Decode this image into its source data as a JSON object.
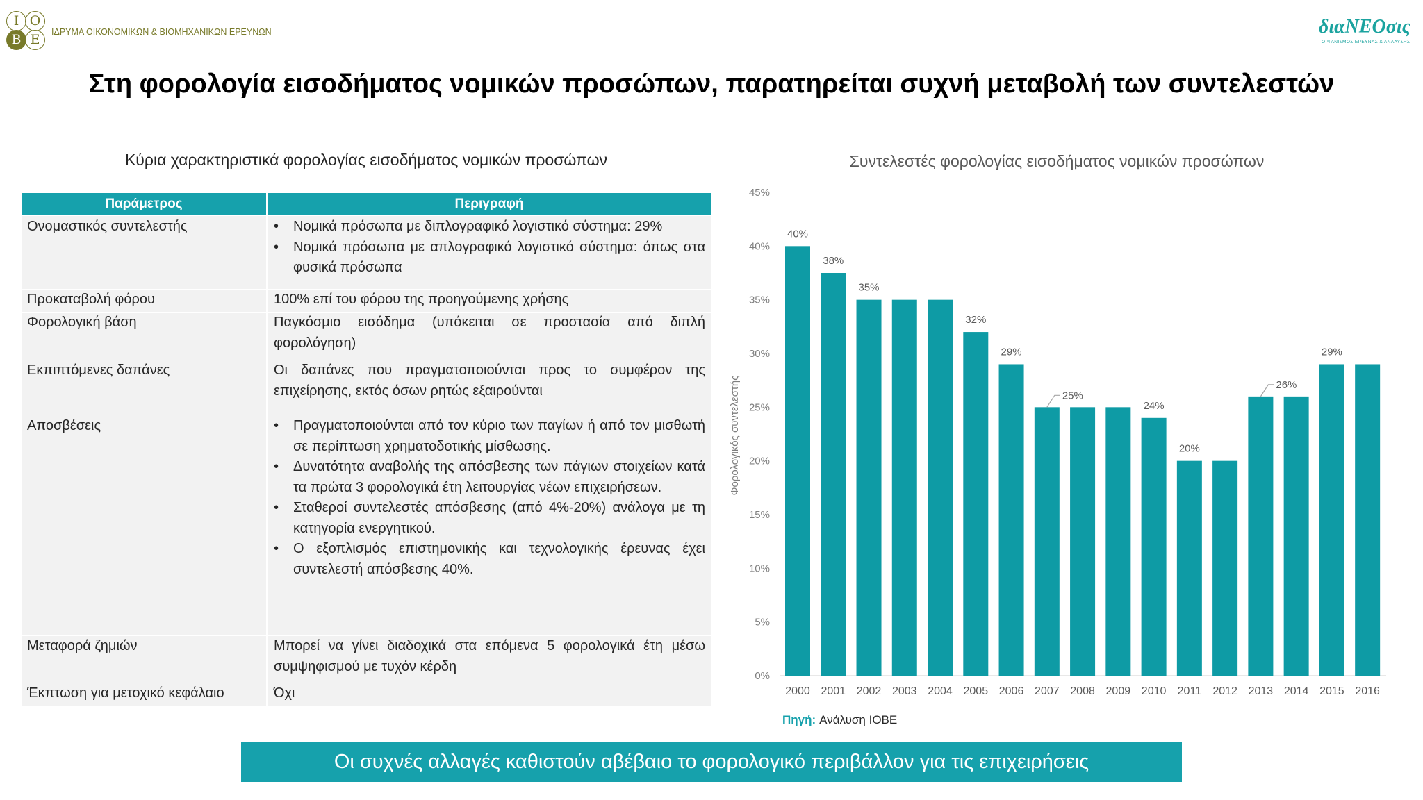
{
  "header": {
    "logo_letters": [
      "Ι",
      "Ο",
      "Β",
      "Ε"
    ],
    "org_name": "ΙΔΡΥΜΑ ΟΙΚΟΝΟΜΙΚΩΝ & ΒΙΟΜΗΧΑΝΙΚΩΝ ΕΡΕΥΝΩΝ",
    "partner_name": "διαΝΕΟσις",
    "partner_tagline": "ΟΡΓΑΝΙΣΜΟΣ ΕΡΕΥΝΑΣ & ΑΝΑΛΥΣΗΣ"
  },
  "title": "Στη φορολογία εισοδήματος νομικών προσώπων, παρατηρείται συχνή μεταβολή των συντελεστών",
  "table": {
    "caption": "Κύρια χαρακτηριστικά φορολογίας εισοδήματος νομικών προσώπων",
    "headers": [
      "Παράμετρος",
      "Περιγραφή"
    ],
    "rows": [
      {
        "parameter": "Ονομαστικός συντελεστής",
        "bullets": [
          "Νομικά πρόσωπα με διπλογραφικό λογιστικό σύστημα: 29%",
          "Νομικά πρόσωπα με απλογραφικό λογιστικό σύστημα: όπως στα φυσικά πρόσωπα"
        ]
      },
      {
        "parameter": "Προκαταβολή φόρου",
        "description": "100% επί του φόρου της προηγούμενης χρήσης"
      },
      {
        "parameter": "Φορολογική βάση",
        "description": "Παγκόσμιο εισόδημα (υπόκειται σε προστασία από διπλή φορολόγηση)"
      },
      {
        "parameter": "Εκπιπτόμενες δαπάνες",
        "description": "Οι δαπάνες που πραγματοποιούνται προς το συμφέρον της επιχείρησης, εκτός όσων ρητώς εξαιρούνται"
      },
      {
        "parameter": "Αποσβέσεις",
        "bullets": [
          "Πραγματοποιούνται από τον κύριο των παγίων ή από τον μισθωτή σε περίπτωση χρηματοδοτικής μίσθωσης.",
          "Δυνατότητα αναβολής της απόσβεσης των πάγιων στοιχείων κατά τα πρώτα 3 φορολογικά έτη λειτουργίας νέων επιχειρήσεων.",
          "Σταθεροί συντελεστές απόσβεσης (από 4%-20%) ανάλογα με τη κατηγορία ενεργητικού.",
          "Ο εξοπλισμός επιστημονικής και τεχνολογικής έρευνας έχει συντελεστή απόσβεσης 40%."
        ]
      },
      {
        "parameter": "Μεταφορά ζημιών",
        "description": "Μπορεί να γίνει διαδοχικά στα επόμενα 5 φορολογικά έτη μέσω συμψηφισμού με τυχόν κέρδη"
      },
      {
        "parameter": "Έκπτωση για μετοχικό κεφάλαιο",
        "description": "Όχι"
      }
    ]
  },
  "chart_data": {
    "type": "bar",
    "title": "Συντελεστές φορολογίας εισοδήματος νομικών προσώπων",
    "xlabel": "",
    "ylabel": "Φορολογικός συντελεστής",
    "categories": [
      "2000",
      "2001",
      "2002",
      "2003",
      "2004",
      "2005",
      "2006",
      "2007",
      "2008",
      "2009",
      "2010",
      "2011",
      "2012",
      "2013",
      "2014",
      "2015",
      "2016"
    ],
    "values": [
      40,
      37.5,
      35,
      35,
      35,
      32,
      29,
      25,
      25,
      25,
      24,
      20,
      20,
      26,
      26,
      29,
      29
    ],
    "data_labels": [
      "40%",
      "38%",
      "35%",
      null,
      null,
      "32%",
      "29%",
      "25%",
      null,
      null,
      "24%",
      "20%",
      null,
      "26%",
      null,
      "29%",
      null
    ],
    "ylim": [
      0,
      45
    ],
    "yticks": [
      "0%",
      "5%",
      "10%",
      "15%",
      "20%",
      "25%",
      "30%",
      "35%",
      "40%",
      "45%"
    ],
    "grid": false,
    "legend": "none",
    "color": "#0e9ba5"
  },
  "source": {
    "label": "Πηγή:",
    "text": "Ανάλυση ΙΟΒΕ"
  },
  "banner": "Οι συχνές αλλαγές καθιστούν αβέβαιο το φορολογικό περιβάλλον για τις επιχειρήσεις",
  "colors": {
    "accent": "#16a1ac",
    "bar": "#0e9ba5",
    "org_olive": "#787a2a",
    "partner": "#1ba39f",
    "row_bg": "#f2f2f2"
  }
}
